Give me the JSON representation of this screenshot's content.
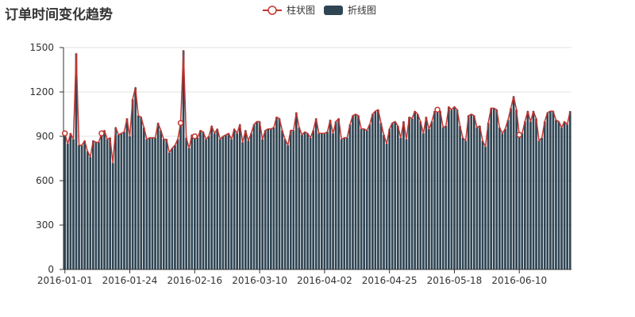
{
  "chart_data": {
    "type": "bar",
    "title": "订单时间变化趋势",
    "legend": {
      "placement": "top-center",
      "entries": [
        {
          "name": "柱状图",
          "icon": "line-circle-icon",
          "color": "#c23531"
        },
        {
          "name": "折线图",
          "icon": "rounded-rect-icon",
          "color": "#2f4554"
        }
      ]
    },
    "colors": {
      "line": "#c23531",
      "bar": "#2f4554",
      "grid": "#e0e0e0",
      "axis": "#333333"
    },
    "ylim": [
      0,
      1500
    ],
    "yticks": [
      0,
      300,
      600,
      900,
      1200,
      1500
    ],
    "x_start": "2016-01-01",
    "x_tick_labels": [
      "2016-01-01",
      "2016-01-24",
      "2016-02-16",
      "2016-03-10",
      "2016-04-02",
      "2016-04-25",
      "2016-05-18",
      "2016-06-10"
    ],
    "grid": true,
    "series": [
      {
        "name": "柱状图",
        "type": "line",
        "values": [
          920,
          850,
          920,
          880,
          1460,
          840,
          840,
          870,
          800,
          760,
          870,
          860,
          860,
          920,
          940,
          880,
          890,
          720,
          960,
          910,
          920,
          930,
          1020,
          900,
          1150,
          1230,
          1040,
          1030,
          960,
          880,
          890,
          890,
          890,
          990,
          940,
          880,
          880,
          790,
          820,
          840,
          880,
          990,
          1480,
          890,
          820,
          910,
          900,
          890,
          940,
          930,
          880,
          900,
          970,
          920,
          950,
          880,
          900,
          910,
          920,
          880,
          950,
          920,
          980,
          860,
          940,
          870,
          920,
          980,
          1000,
          1000,
          880,
          940,
          950,
          950,
          960,
          1030,
          1020,
          940,
          880,
          840,
          940,
          940,
          1060,
          960,
          910,
          930,
          920,
          890,
          940,
          1020,
          920,
          920,
          920,
          930,
          1010,
          920,
          1000,
          1020,
          880,
          890,
          890,
          980,
          1040,
          1050,
          1040,
          950,
          950,
          940,
          980,
          1050,
          1070,
          1080,
          990,
          910,
          850,
          950,
          990,
          1000,
          970,
          890,
          1000,
          880,
          1030,
          1020,
          1070,
          1050,
          1000,
          920,
          1030,
          950,
          1000,
          1070,
          1080,
          1070,
          960,
          970,
          1100,
          1080,
          1100,
          1080,
          970,
          890,
          870,
          1040,
          1050,
          1040,
          960,
          970,
          870,
          830,
          990,
          1090,
          1090,
          1080,
          960,
          920,
          950,
          1010,
          1090,
          1170,
          1080,
          910,
          920,
          1000,
          1070,
          1000,
          1070,
          1020,
          870,
          890,
          1000,
          1060,
          1070,
          1070,
          1010,
          1000,
          960,
          1000,
          980,
          1070
        ]
      },
      {
        "name": "折线图",
        "type": "bar",
        "values": [
          920,
          850,
          920,
          880,
          1460,
          840,
          840,
          870,
          800,
          760,
          870,
          860,
          860,
          920,
          940,
          880,
          890,
          720,
          960,
          910,
          920,
          930,
          1020,
          900,
          1150,
          1230,
          1040,
          1030,
          960,
          880,
          890,
          890,
          890,
          990,
          940,
          880,
          880,
          790,
          820,
          840,
          880,
          990,
          1480,
          890,
          820,
          910,
          900,
          890,
          940,
          930,
          880,
          900,
          970,
          920,
          950,
          880,
          900,
          910,
          920,
          880,
          950,
          920,
          980,
          860,
          940,
          870,
          920,
          980,
          1000,
          1000,
          880,
          940,
          950,
          950,
          960,
          1030,
          1020,
          940,
          880,
          840,
          940,
          940,
          1060,
          960,
          910,
          930,
          920,
          890,
          940,
          1020,
          920,
          920,
          920,
          930,
          1010,
          920,
          1000,
          1020,
          880,
          890,
          890,
          980,
          1040,
          1050,
          1040,
          950,
          950,
          940,
          980,
          1050,
          1070,
          1080,
          990,
          910,
          850,
          950,
          990,
          1000,
          970,
          890,
          1000,
          880,
          1030,
          1020,
          1070,
          1050,
          1000,
          920,
          1030,
          950,
          1000,
          1070,
          1080,
          1070,
          960,
          970,
          1100,
          1080,
          1100,
          1080,
          970,
          890,
          870,
          1040,
          1050,
          1040,
          960,
          970,
          870,
          830,
          990,
          1090,
          1090,
          1080,
          960,
          920,
          950,
          1010,
          1090,
          1170,
          1080,
          910,
          920,
          1000,
          1070,
          1000,
          1070,
          1020,
          870,
          890,
          1000,
          1060,
          1070,
          1070,
          1010,
          1000,
          960,
          1000,
          980,
          1070
        ]
      }
    ]
  }
}
